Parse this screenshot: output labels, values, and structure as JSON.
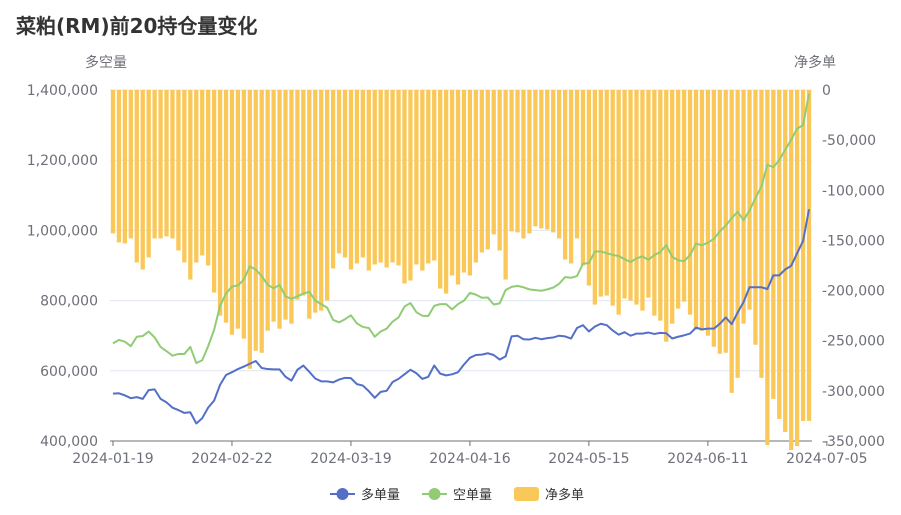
{
  "chart_data": {
    "type": "bar+line",
    "title": "菜粕(RM)前20持仓量变化",
    "y_left_label": "多空量",
    "y_right_label": "净多单",
    "y_left_range": [
      400000,
      1400000
    ],
    "y_right_range": [
      -350000,
      0
    ],
    "y_left_ticks": [
      "1,400,000",
      "1,200,000",
      "1,000,000",
      "800,000",
      "600,000",
      "400,000"
    ],
    "y_right_ticks": [
      "0",
      "-50,000",
      "-100,000",
      "-150,000",
      "-200,000",
      "-250,000",
      "-300,000",
      "-350,000"
    ],
    "x_tick_labels": [
      {
        "index": 0,
        "label": "2024-01-19"
      },
      {
        "index": 20,
        "label": "2024-02-22"
      },
      {
        "index": 40,
        "label": "2024-03-19"
      },
      {
        "index": 60,
        "label": "2024-04-16"
      },
      {
        "index": 80,
        "label": "2024-05-15"
      },
      {
        "index": 100,
        "label": "2024-06-11"
      },
      {
        "index": 120,
        "label": "2024-07-05"
      }
    ],
    "legend": [
      {
        "name": "多单量",
        "color": "#5470c6",
        "kind": "line"
      },
      {
        "name": "空单量",
        "color": "#91cc75",
        "kind": "line"
      },
      {
        "name": "净多单",
        "color": "#fac858",
        "kind": "bar"
      }
    ],
    "series": [
      {
        "name": "多单量",
        "axis": "left",
        "values": [
          535000,
          536000,
          530000,
          522000,
          525000,
          520000,
          545000,
          547000,
          520000,
          510000,
          495000,
          488000,
          480000,
          482000,
          450000,
          465000,
          495000,
          515000,
          560000,
          588000,
          596000,
          605000,
          612000,
          620000,
          628000,
          608000,
          605000,
          604000,
          604000,
          583000,
          572000,
          603000,
          615000,
          597000,
          578000,
          570000,
          570000,
          567000,
          575000,
          580000,
          579000,
          562000,
          558000,
          542000,
          523000,
          540000,
          543000,
          568000,
          577000,
          590000,
          603000,
          593000,
          577000,
          583000,
          615000,
          592000,
          587000,
          590000,
          596000,
          618000,
          637000,
          645000,
          646000,
          650000,
          645000,
          632000,
          641000,
          698000,
          700000,
          690000,
          689000,
          694000,
          690000,
          693000,
          695000,
          700000,
          698000,
          692000,
          722000,
          730000,
          712000,
          726000,
          734000,
          730000,
          715000,
          703000,
          710000,
          700000,
          706000,
          706000,
          709000,
          705000,
          708000,
          707000,
          692000,
          697000,
          701000,
          706000,
          723000,
          718000,
          720000,
          720000,
          734000,
          752000,
          733000,
          766000,
          796000,
          838000,
          838000,
          838000,
          833000,
          872000,
          872000,
          889000,
          899000,
          935000,
          970000,
          1060000
        ]
      },
      {
        "name": "空单量",
        "axis": "left",
        "values": [
          678000,
          688000,
          683000,
          670000,
          697000,
          699000,
          712000,
          695000,
          668000,
          656000,
          643000,
          648000,
          648000,
          668000,
          622000,
          630000,
          670000,
          717000,
          785000,
          820000,
          840000,
          843000,
          860000,
          898000,
          888000,
          870000,
          845000,
          835000,
          845000,
          812000,
          805000,
          812000,
          820000,
          825000,
          800000,
          790000,
          780000,
          745000,
          738000,
          747000,
          758000,
          735000,
          725000,
          722000,
          697000,
          712000,
          720000,
          740000,
          752000,
          783000,
          793000,
          767000,
          757000,
          756000,
          785000,
          790000,
          790000,
          775000,
          790000,
          800000,
          822000,
          817000,
          808000,
          809000,
          789000,
          792000,
          830000,
          839000,
          842000,
          838000,
          832000,
          830000,
          828000,
          832000,
          837000,
          848000,
          867000,
          865000,
          870000,
          905000,
          907000,
          940000,
          940000,
          935000,
          930000,
          927000,
          918000,
          910000,
          920000,
          926000,
          916000,
          930000,
          938000,
          958000,
          925000,
          915000,
          912000,
          930000,
          962000,
          958000,
          965000,
          976000,
          997000,
          1014000,
          1035000,
          1053000,
          1029000,
          1057000,
          1092000,
          1125000,
          1187000,
          1180000,
          1200000,
          1230000,
          1258000,
          1290000,
          1300000,
          1390000
        ]
      },
      {
        "name": "净多单",
        "axis": "right",
        "values": [
          -143000,
          -152000,
          -153000,
          -148000,
          -172000,
          -179000,
          -167000,
          -148000,
          -148000,
          -146000,
          -148000,
          -160000,
          -172000,
          -189000,
          -172000,
          -165000,
          -175000,
          -202000,
          -225000,
          -232000,
          -244000,
          -238000,
          -248000,
          -278000,
          -260000,
          -262000,
          -240000,
          -231000,
          -238000,
          -229000,
          -233000,
          -209000,
          -205000,
          -228000,
          -222000,
          -220000,
          -210000,
          -178000,
          -163000,
          -167000,
          -179000,
          -173000,
          -167000,
          -180000,
          -174000,
          -172000,
          -177000,
          -172000,
          -175000,
          -193000,
          -190000,
          -174000,
          -180000,
          -173000,
          -170000,
          -198000,
          -203000,
          -185000,
          -194000,
          -182000,
          -185000,
          -172000,
          -162000,
          -159000,
          -144000,
          -160000,
          -189000,
          -141000,
          -142000,
          -148000,
          -143000,
          -136000,
          -138000,
          -139000,
          -142000,
          -148000,
          -169000,
          -173000,
          -148000,
          -175000,
          -195000,
          -214000,
          -206000,
          -205000,
          -215000,
          -224000,
          -208000,
          -210000,
          -214000,
          -220000,
          -207000,
          -225000,
          -230000,
          -251000,
          -233000,
          -218000,
          -211000,
          -224000,
          -239000,
          -240000,
          -245000,
          -256000,
          -263000,
          -262000,
          -302000,
          -287000,
          -233000,
          -219000,
          -254000,
          -287000,
          -354000,
          -308000,
          -328000,
          -341000,
          -359000,
          -355000,
          -330000,
          -330000
        ]
      }
    ]
  }
}
